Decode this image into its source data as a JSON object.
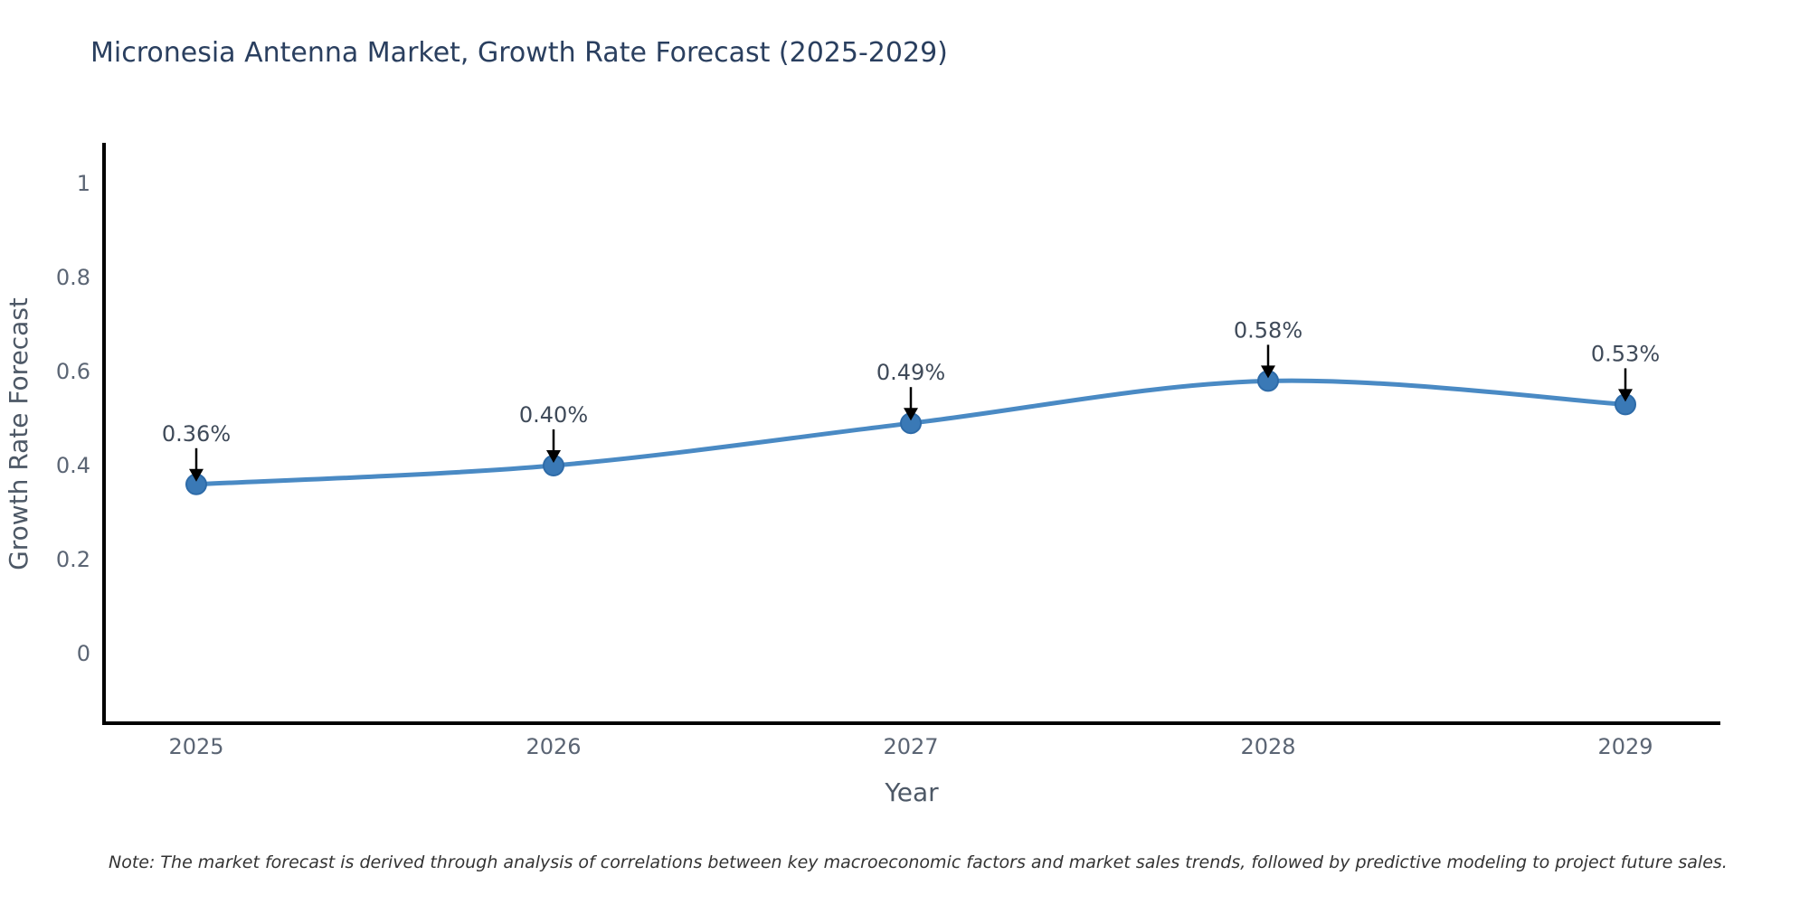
{
  "note": "Note: The market forecast is derived through analysis of correlations between key macroeconomic factors and market sales trends, followed by predictive modeling to project future sales.",
  "chart_data": {
    "type": "line",
    "title": "Micronesia Antenna Market, Growth Rate Forecast (2025-2029)",
    "xlabel": "Year",
    "ylabel": "Growth Rate Forecast",
    "x": [
      2025,
      2026,
      2027,
      2028,
      2029
    ],
    "x_tick_labels": [
      "2025",
      "2026",
      "2027",
      "2028",
      "2029"
    ],
    "series": [
      {
        "name": "Growth Rate Forecast",
        "values": [
          0.36,
          0.4,
          0.49,
          0.58,
          0.53
        ],
        "point_labels": [
          "0.36%",
          "0.40%",
          "0.49%",
          "0.58%",
          "0.53%"
        ]
      }
    ],
    "y_ticks": [
      0,
      0.2,
      0.4,
      0.6,
      0.8,
      1
    ],
    "y_tick_labels": [
      "0",
      "0.2",
      "0.4",
      "0.6",
      "0.8",
      "1"
    ],
    "ylim": [
      -0.15,
      1.08
    ],
    "xlim": [
      2024.74,
      2029.26
    ],
    "grid": false,
    "legend": "none",
    "line_shape": "spline",
    "annotation_style": "point value labels with downward black arrows",
    "colors": {
      "line": "#4a8ac4",
      "marker": "#3a79b6",
      "marker_edge": "#2e6ba8",
      "axis_line": "#000000",
      "title_text": "#2a3f5f",
      "tick_text": "#5b6574",
      "axis_title_text": "#4d5866",
      "annotation_text": "#3f4a59",
      "arrow": "#000000",
      "note_text": "#333333"
    }
  }
}
